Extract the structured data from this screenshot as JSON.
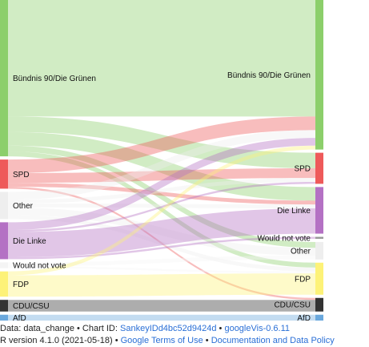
{
  "chart_data": {
    "type": "sankey",
    "nodes_left": [
      {
        "id": "L_gruene",
        "label": "Bündnis 90/Die Grünen",
        "color": "#8ccf6b"
      },
      {
        "id": "L_spd",
        "label": "SPD",
        "color": "#ee5a5a"
      },
      {
        "id": "L_other",
        "label": "Other",
        "color": "#eeeeee"
      },
      {
        "id": "L_linke",
        "label": "Die Linke",
        "color": "#b471c4"
      },
      {
        "id": "L_wnv",
        "label": "Would not vote",
        "color": "#f4f4f4"
      },
      {
        "id": "L_fdp",
        "label": "FDP",
        "color": "#fdf278"
      },
      {
        "id": "L_cdu",
        "label": "CDU/CSU",
        "color": "#333333"
      },
      {
        "id": "L_afd",
        "label": "AfD",
        "color": "#6aa8dd"
      }
    ],
    "nodes_right": [
      {
        "id": "R_gruene",
        "label": "Bündnis 90/Die Grünen",
        "color": "#8ccf6b"
      },
      {
        "id": "R_spd",
        "label": "SPD",
        "color": "#ee5a5a"
      },
      {
        "id": "R_linke",
        "label": "Die Linke",
        "color": "#b471c4"
      },
      {
        "id": "R_wnv",
        "label": "Would not vote",
        "color": "#999999"
      },
      {
        "id": "R_other",
        "label": "Other",
        "color": "#eeeeee"
      },
      {
        "id": "R_fdp",
        "label": "FDP",
        "color": "#fdf278"
      },
      {
        "id": "R_cdu",
        "label": "CDU/CSU",
        "color": "#333333"
      },
      {
        "id": "R_afd",
        "label": "AfD",
        "color": "#6aa8dd"
      }
    ],
    "links": [
      {
        "source": "L_gruene",
        "target": "R_gruene",
        "value": 120
      },
      {
        "source": "L_gruene",
        "target": "R_spd",
        "value": 16
      },
      {
        "source": "L_gruene",
        "target": "R_linke",
        "value": 14
      },
      {
        "source": "L_gruene",
        "target": "R_other",
        "value": 6
      },
      {
        "source": "L_gruene",
        "target": "R_fdp",
        "value": 5
      },
      {
        "source": "L_spd",
        "target": "R_gruene",
        "value": 14
      },
      {
        "source": "L_spd",
        "target": "R_spd",
        "value": 10
      },
      {
        "source": "L_spd",
        "target": "R_linke",
        "value": 4
      },
      {
        "source": "L_spd",
        "target": "R_cdu",
        "value": 2
      },
      {
        "source": "L_other",
        "target": "R_gruene",
        "value": 8
      },
      {
        "source": "L_other",
        "target": "R_spd",
        "value": 4
      },
      {
        "source": "L_other",
        "target": "R_linke",
        "value": 4
      },
      {
        "source": "L_other",
        "target": "R_other",
        "value": 8
      },
      {
        "source": "L_other",
        "target": "R_fdp",
        "value": 4
      },
      {
        "source": "L_linke",
        "target": "R_gruene",
        "value": 8
      },
      {
        "source": "L_linke",
        "target": "R_spd",
        "value": 2
      },
      {
        "source": "L_linke",
        "target": "R_linke",
        "value": 26
      },
      {
        "source": "L_linke",
        "target": "R_wnv",
        "value": 2
      },
      {
        "source": "L_wnv",
        "target": "R_other",
        "value": 4
      },
      {
        "source": "L_wnv",
        "target": "R_fdp",
        "value": 2
      },
      {
        "source": "L_fdp",
        "target": "R_gruene",
        "value": 4
      },
      {
        "source": "L_fdp",
        "target": "R_fdp",
        "value": 22
      },
      {
        "source": "L_cdu",
        "target": "R_cdu",
        "value": 12
      },
      {
        "source": "L_afd",
        "target": "R_afd",
        "value": 6
      }
    ]
  },
  "footer": {
    "data_prefix": "Data: data_change • Chart ID: ",
    "chart_id": "SankeyIDd4bc52d9424d",
    "separator_1": " • ",
    "googlevis_version": "googleVis-0.6.11",
    "r_version": "R version 4.1.0 (2021-05-18) • ",
    "google_terms": "Google Terms of Use",
    "separator_2": " • ",
    "data_policy": "Documentation and Data Policy"
  }
}
